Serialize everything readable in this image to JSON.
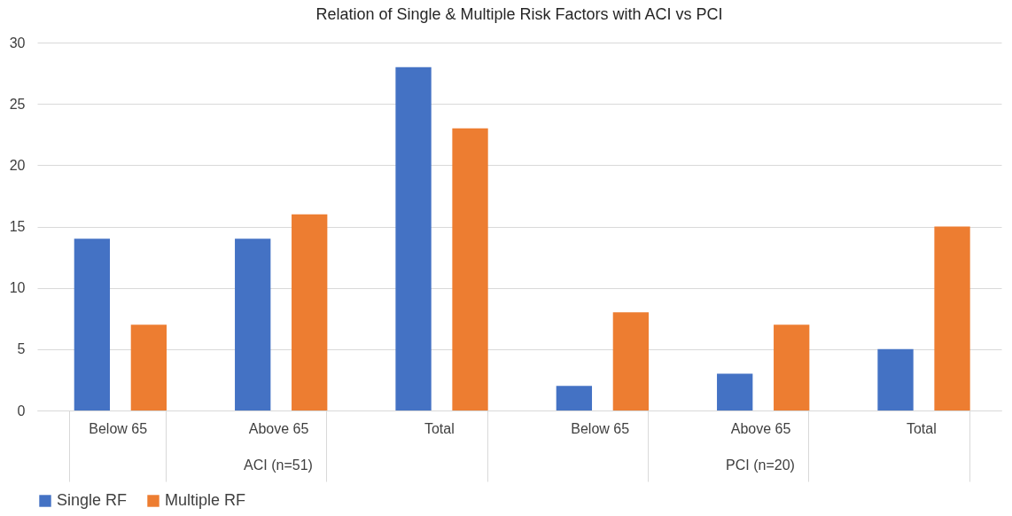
{
  "chart_data": {
    "type": "bar",
    "title": "Relation of Single & Multiple Risk Factors with ACI vs PCI",
    "categories": [
      "Below 65",
      "Above 65",
      "Total",
      "Below 65",
      "Above 65",
      "Total"
    ],
    "series": [
      {
        "name": "Single RF",
        "color": "#4472c4",
        "values": [
          14,
          14,
          28,
          2,
          3,
          5
        ]
      },
      {
        "name": "Multiple RF",
        "color": "#ed7d31",
        "values": [
          7,
          16,
          23,
          8,
          7,
          15
        ]
      }
    ],
    "ylim": [
      0,
      30
    ],
    "yticks": [
      0,
      5,
      10,
      15,
      20,
      25,
      30
    ],
    "grid": "y",
    "legend": "bottom",
    "annotations": [
      "ACI (n=51)",
      "PCI (n=20)"
    ]
  }
}
